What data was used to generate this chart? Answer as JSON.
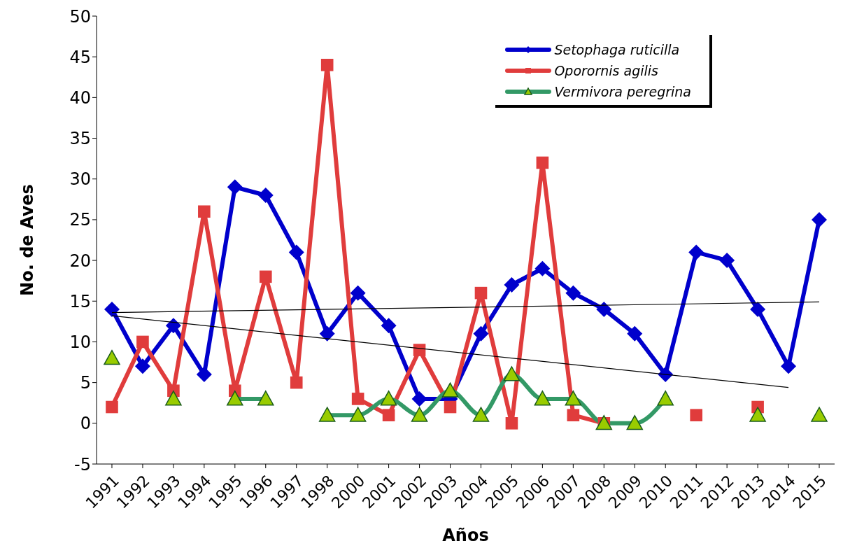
{
  "chart_data": {
    "type": "line",
    "xlabel": "Años",
    "ylabel": "No. de Aves",
    "categories": [
      "1991",
      "1992",
      "1993",
      "1994",
      "1995",
      "1996",
      "1997",
      "1998",
      "2000",
      "2001",
      "2002",
      "2003",
      "2004",
      "2005",
      "2006",
      "2007",
      "2008",
      "2009",
      "2010",
      "2011",
      "2012",
      "2013",
      "2014",
      "2015"
    ],
    "ylim": [
      -5,
      50
    ],
    "yticks": [
      -5,
      0,
      5,
      10,
      15,
      20,
      25,
      30,
      35,
      40,
      45,
      50
    ],
    "grid": false,
    "legend": "top right",
    "line_style": "solid",
    "series": [
      {
        "name": "Setophaga ruticilla",
        "color": "#0000cc",
        "marker": "diamond",
        "values": [
          14,
          7,
          12,
          6,
          29,
          28,
          21,
          11,
          16,
          12,
          3,
          3,
          11,
          17,
          19,
          16,
          14,
          11,
          6,
          21,
          20,
          14,
          7,
          25
        ]
      },
      {
        "name": "Oporornis agilis",
        "color": "#e03c3c",
        "marker": "square",
        "values": [
          2,
          10,
          4,
          26,
          4,
          18,
          5,
          44,
          3,
          1,
          9,
          2,
          16,
          0,
          32,
          1,
          0,
          null,
          null,
          1,
          null,
          2,
          null,
          null
        ]
      },
      {
        "name": "Vermivora peregrina",
        "color": "#339966",
        "marker": "triangle",
        "colors": [
          "#99cc00",
          null,
          "#99cc00",
          null,
          "#99cc00",
          "#99cc00",
          null,
          "#99cc00",
          "#99cc00",
          "#99cc00",
          "#99cc00",
          "#99cc00",
          "#99cc00",
          "#99cc00",
          "#99cc00",
          "#99cc00",
          "#99cc00",
          "#99cc00",
          "#99cc00",
          null,
          null,
          "#99cc00",
          null,
          "#99cc00"
        ],
        "values": [
          8,
          null,
          3,
          null,
          3,
          3,
          null,
          1,
          1,
          3,
          1,
          4,
          1,
          6,
          3,
          3,
          0,
          0,
          3,
          null,
          null,
          1,
          null,
          1
        ]
      },
      {
        "type": "line",
        "color": "#000000",
        "marker": "none",
        "values": [
          13.6,
          null,
          null,
          null,
          null,
          null,
          null,
          null,
          null,
          null,
          null,
          null,
          null,
          null,
          null,
          null,
          null,
          null,
          null,
          null,
          null,
          null,
          null,
          14.9
        ]
      },
      {
        "type": "line",
        "color": "#000000",
        "marker": "none",
        "values": [
          13.2,
          null,
          null,
          null,
          null,
          null,
          null,
          null,
          null,
          null,
          null,
          null,
          null,
          null,
          null,
          null,
          null,
          null,
          null,
          null,
          null,
          null,
          4.4,
          null
        ]
      }
    ]
  }
}
